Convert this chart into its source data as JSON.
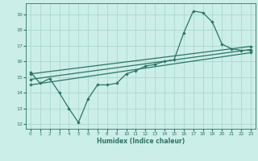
{
  "bg_color": "#cceee8",
  "grid_color": "#aad8d0",
  "line_color": "#2a7568",
  "xlabel": "Humidex (Indice chaleur)",
  "xlim": [
    -0.5,
    23.5
  ],
  "ylim": [
    11.7,
    19.7
  ],
  "yticks": [
    12,
    13,
    14,
    15,
    16,
    17,
    18,
    19
  ],
  "xticks": [
    0,
    1,
    2,
    3,
    4,
    5,
    6,
    7,
    8,
    9,
    10,
    11,
    12,
    13,
    14,
    15,
    16,
    17,
    18,
    19,
    20,
    21,
    22,
    23
  ],
  "line1_x": [
    0,
    1,
    2,
    3,
    4,
    5,
    6,
    7,
    8,
    9,
    10,
    11,
    12,
    13,
    14,
    15,
    16,
    17,
    18,
    19,
    20,
    21,
    22,
    23
  ],
  "line1_y": [
    15.3,
    14.6,
    14.9,
    14.0,
    13.0,
    12.1,
    13.6,
    14.5,
    14.5,
    14.6,
    15.2,
    15.4,
    15.7,
    15.8,
    16.0,
    16.1,
    17.8,
    19.2,
    19.1,
    18.5,
    17.1,
    16.8,
    16.7,
    16.7
  ],
  "line2_x": [
    0,
    23
  ],
  "line2_y": [
    14.85,
    16.75
  ],
  "line3_x": [
    0,
    23
  ],
  "line3_y": [
    15.2,
    16.95
  ],
  "line4_x": [
    0,
    23
  ],
  "line4_y": [
    14.5,
    16.55
  ]
}
